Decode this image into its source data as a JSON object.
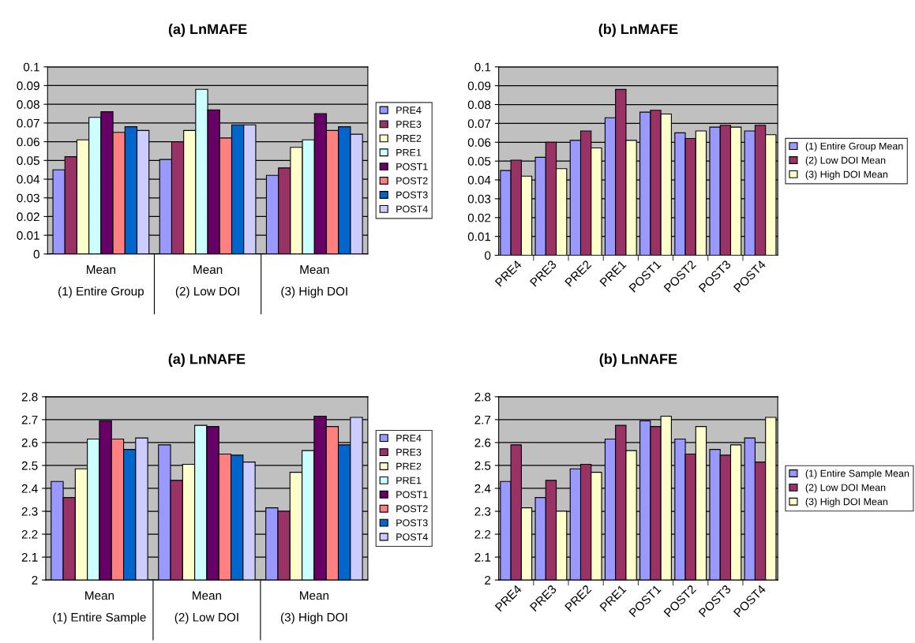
{
  "chart_data": [
    {
      "type": "bar",
      "title": "(a) LnMAFE",
      "categories": [
        "Mean\n(1) Entire Group",
        "Mean\n(2) Low DOI",
        "Mean\n(3) High DOI"
      ],
      "ylim": [
        0,
        0.1
      ],
      "yticks": [
        0,
        0.01,
        0.02,
        0.03,
        0.04,
        0.05,
        0.06,
        0.07,
        0.08,
        0.09,
        0.1
      ],
      "grid": "y",
      "legend": "right",
      "series": [
        {
          "name": "PRE4",
          "color": "#9999ff",
          "values": [
            0.045,
            0.0505,
            0.042
          ]
        },
        {
          "name": "PRE3",
          "color": "#993366",
          "values": [
            0.052,
            0.06,
            0.046
          ]
        },
        {
          "name": "PRE2",
          "color": "#ffffcc",
          "values": [
            0.061,
            0.066,
            0.057
          ]
        },
        {
          "name": "PRE1",
          "color": "#ccffff",
          "values": [
            0.073,
            0.088,
            0.061
          ]
        },
        {
          "name": "POST1",
          "color": "#660066",
          "values": [
            0.076,
            0.077,
            0.075
          ]
        },
        {
          "name": "POST2",
          "color": "#ff8080",
          "values": [
            0.065,
            0.062,
            0.066
          ]
        },
        {
          "name": "POST3",
          "color": "#0066cc",
          "values": [
            0.068,
            0.069,
            0.068
          ]
        },
        {
          "name": "POST4",
          "color": "#ccccff",
          "values": [
            0.066,
            0.069,
            0.064
          ]
        }
      ]
    },
    {
      "type": "bar",
      "title": "(b) LnMAFE",
      "categories": [
        "PRE4",
        "PRE3",
        "PRE2",
        "PRE1",
        "POST1",
        "POST2",
        "POST3",
        "POST4"
      ],
      "ylim": [
        0,
        0.1
      ],
      "yticks": [
        0,
        0.01,
        0.02,
        0.03,
        0.04,
        0.05,
        0.06,
        0.07,
        0.08,
        0.09,
        0.1
      ],
      "grid": "y",
      "legend": "right",
      "series": [
        {
          "name": "(1) Entire Group Mean",
          "color": "#9999ff",
          "values": [
            0.045,
            0.052,
            0.061,
            0.073,
            0.076,
            0.065,
            0.068,
            0.066
          ]
        },
        {
          "name": "(2) Low DOI Mean",
          "color": "#993366",
          "values": [
            0.0505,
            0.06,
            0.066,
            0.088,
            0.077,
            0.062,
            0.069,
            0.069
          ]
        },
        {
          "name": "(3) High DOI Mean",
          "color": "#ffffcc",
          "values": [
            0.042,
            0.046,
            0.057,
            0.061,
            0.075,
            0.066,
            0.068,
            0.064
          ]
        }
      ]
    },
    {
      "type": "bar",
      "title": "(a) LnNAFE",
      "categories": [
        "Mean\n(1) Entire Sample",
        "Mean\n(2) Low DOI",
        "Mean\n(3) High DOI"
      ],
      "ylim": [
        2,
        2.8
      ],
      "yticks": [
        2,
        2.1,
        2.2,
        2.3,
        2.4,
        2.5,
        2.6,
        2.7,
        2.8
      ],
      "grid": "y",
      "legend": "right",
      "series": [
        {
          "name": "PRE4",
          "color": "#9999ff",
          "values": [
            2.43,
            2.59,
            2.315
          ]
        },
        {
          "name": "PRE3",
          "color": "#993366",
          "values": [
            2.36,
            2.435,
            2.3
          ]
        },
        {
          "name": "PRE2",
          "color": "#ffffcc",
          "values": [
            2.485,
            2.505,
            2.47
          ]
        },
        {
          "name": "PRE1",
          "color": "#ccffff",
          "values": [
            2.615,
            2.675,
            2.565
          ]
        },
        {
          "name": "POST1",
          "color": "#660066",
          "values": [
            2.695,
            2.67,
            2.715
          ]
        },
        {
          "name": "POST2",
          "color": "#ff8080",
          "values": [
            2.615,
            2.55,
            2.67
          ]
        },
        {
          "name": "POST3",
          "color": "#0066cc",
          "values": [
            2.57,
            2.545,
            2.59
          ]
        },
        {
          "name": "POST4",
          "color": "#ccccff",
          "values": [
            2.62,
            2.515,
            2.71
          ]
        }
      ]
    },
    {
      "type": "bar",
      "title": "(b) LnNAFE",
      "categories": [
        "PRE4",
        "PRE3",
        "PRE2",
        "PRE1",
        "POST1",
        "POST2",
        "POST3",
        "POST4"
      ],
      "ylim": [
        2,
        2.8
      ],
      "yticks": [
        2,
        2.1,
        2.2,
        2.3,
        2.4,
        2.5,
        2.6,
        2.7,
        2.8
      ],
      "grid": "y",
      "legend": "right",
      "series": [
        {
          "name": "(1) Entire Sample Mean",
          "color": "#9999ff",
          "values": [
            2.43,
            2.36,
            2.485,
            2.615,
            2.695,
            2.615,
            2.57,
            2.62
          ]
        },
        {
          "name": "(2) Low DOI Mean",
          "color": "#993366",
          "values": [
            2.59,
            2.435,
            2.505,
            2.675,
            2.67,
            2.55,
            2.545,
            2.515
          ]
        },
        {
          "name": "(3) High DOI Mean",
          "color": "#ffffcc",
          "values": [
            2.315,
            2.3,
            2.47,
            2.565,
            2.715,
            2.67,
            2.59,
            2.71
          ]
        }
      ]
    }
  ]
}
